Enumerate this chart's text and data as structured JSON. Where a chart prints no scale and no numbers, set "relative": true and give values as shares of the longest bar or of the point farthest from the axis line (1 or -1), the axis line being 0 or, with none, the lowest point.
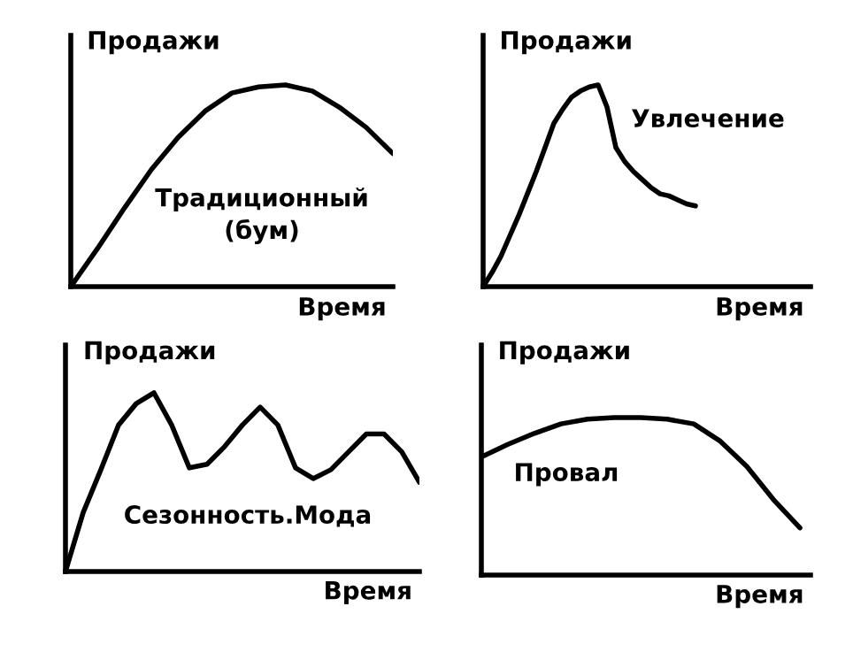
{
  "chart_data": [
    {
      "type": "line",
      "relative": true,
      "ylabel": "Продажи",
      "xlabel": "Время",
      "annotations": [
        "Традиционный\n(бум)"
      ],
      "categories": [
        null,
        null,
        null,
        null,
        null,
        null,
        null,
        null,
        null,
        null,
        null,
        null,
        null
      ],
      "series": [
        {
          "color": "#000000",
          "values": [
            0,
            0.19,
            0.39,
            0.58,
            0.74,
            0.87,
            0.96,
            0.99,
            1.0,
            0.97,
            0.89,
            0.79,
            0.66
          ]
        }
      ]
    },
    {
      "type": "line",
      "relative": true,
      "ylabel": "Продажи",
      "xlabel": "Время",
      "annotations": [
        "Увлечение"
      ],
      "categories": [
        null,
        null,
        null,
        null,
        null,
        null,
        null,
        null,
        null,
        null,
        null,
        null,
        null,
        null,
        null,
        null,
        null,
        null,
        null,
        null,
        null,
        null,
        null,
        null,
        null
      ],
      "series": [
        {
          "color": "#000000",
          "values": [
            0,
            0.07,
            0.15,
            0.25,
            0.35,
            0.46,
            0.57,
            0.69,
            0.81,
            0.88,
            0.94,
            0.97,
            0.99,
            1.0,
            0.89,
            0.69,
            0.62,
            0.57,
            0.53,
            0.49,
            0.46,
            0.45,
            0.43,
            0.41,
            0.4
          ]
        }
      ]
    },
    {
      "type": "line",
      "relative": true,
      "ylabel": "Продажи",
      "xlabel": "Время",
      "annotations": [
        "Сезонность.Мода"
      ],
      "categories": [
        null,
        null,
        null,
        null,
        null,
        null,
        null,
        null,
        null,
        null,
        null,
        null,
        null,
        null,
        null,
        null,
        null,
        null,
        null,
        null,
        null
      ],
      "series": [
        {
          "color": "#000000",
          "values": [
            0,
            0.33,
            0.57,
            0.82,
            0.94,
            1.0,
            0.82,
            0.58,
            0.6,
            0.7,
            0.82,
            0.92,
            0.82,
            0.58,
            0.52,
            0.57,
            0.67,
            0.77,
            0.77,
            0.67,
            0.5
          ]
        }
      ]
    },
    {
      "type": "line",
      "relative": true,
      "ylabel": "Продажи",
      "xlabel": "Время",
      "annotations": [
        "Провал"
      ],
      "categories": [
        null,
        null,
        null,
        null,
        null,
        null,
        null,
        null,
        null,
        null,
        null,
        null,
        null
      ],
      "series": [
        {
          "color": "#000000",
          "values": [
            0.75,
            0.83,
            0.9,
            0.96,
            0.99,
            1.0,
            1.0,
            0.99,
            0.96,
            0.85,
            0.69,
            0.48,
            0.3
          ]
        }
      ]
    }
  ]
}
